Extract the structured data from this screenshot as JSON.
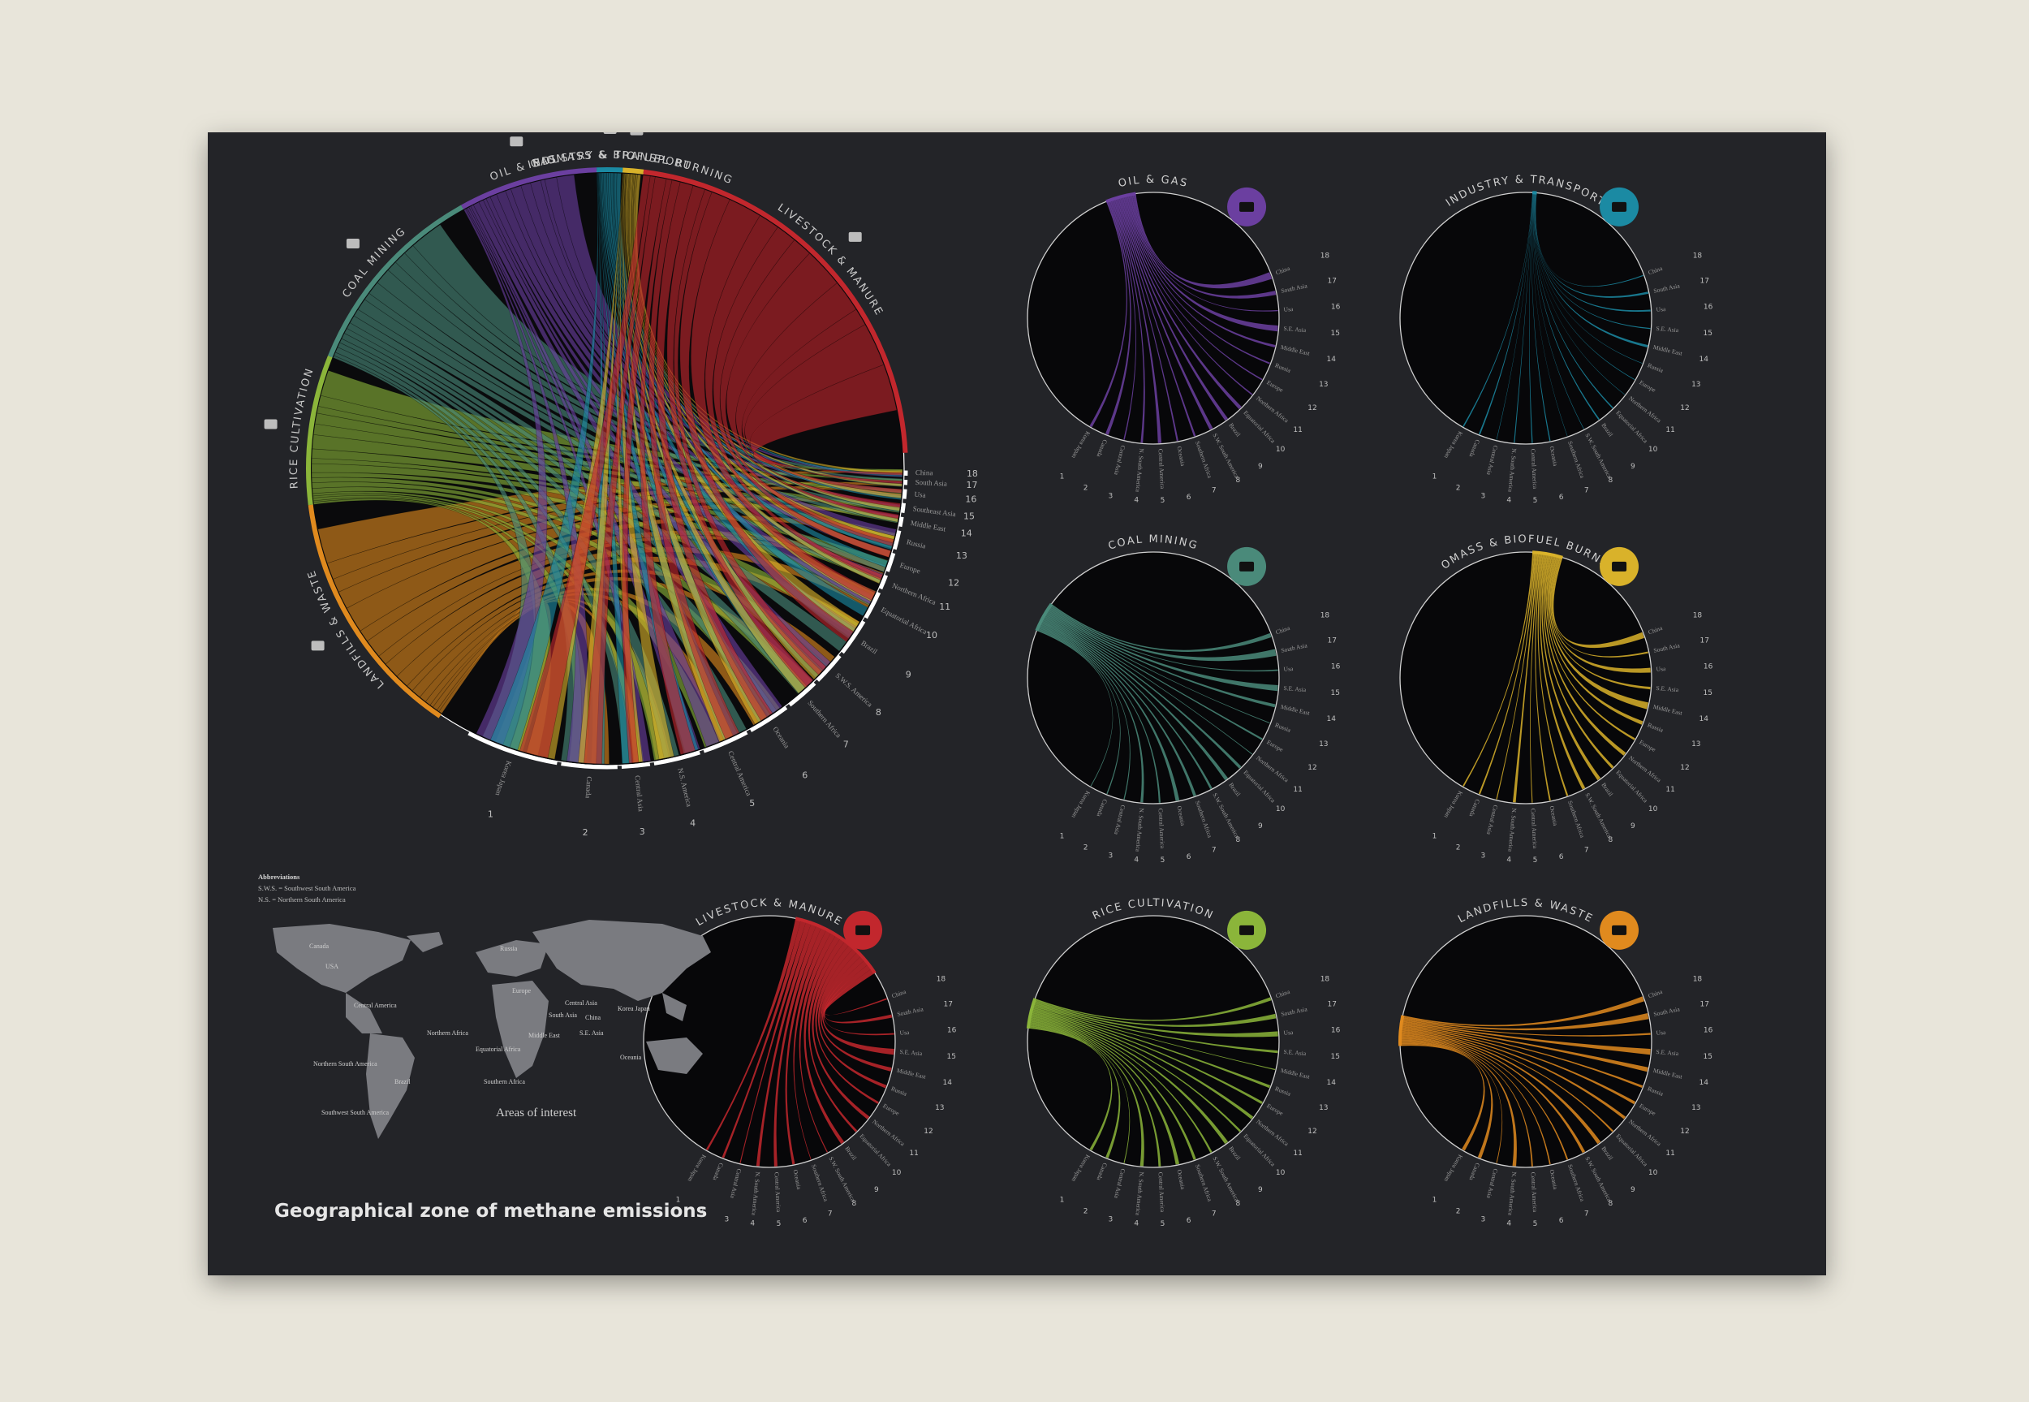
{
  "title": "Geographical zone of methane emissions",
  "abbreviations": {
    "heading": "Abbreviations",
    "items": [
      "S.W.S. = Southwest South America",
      "N.S. = Northern South America"
    ]
  },
  "colors": {
    "oil_gas": "#6b3fa0",
    "industry_transport": "#1b8aa3",
    "biomass": "#d9b22a",
    "livestock": "#c2272d",
    "coal": "#4a8a7a",
    "rice": "#8bb53a",
    "landfills": "#e08a1e"
  },
  "chart_data": [
    {
      "type": "chord",
      "sectors": [
        {
          "name": "LANDFILLS & WASTE",
          "icon": "excavator-icon",
          "color": "#e08a1e"
        },
        {
          "name": "RICE CULTIVATION",
          "icon": "rice-plant-icon",
          "color": "#8bb53a"
        },
        {
          "name": "COAL MINING",
          "icon": "mine-cart-icon",
          "color": "#4a8a7a"
        },
        {
          "name": "OIL & GAS",
          "icon": "oil-barrel-icon",
          "color": "#6b3fa0"
        },
        {
          "name": "INDUSTRY & TRANSPORT",
          "icon": "ship-icon",
          "color": "#1b8aa3"
        },
        {
          "name": "BIOMASS & BIOFUEL BURNING",
          "icon": "flame-icon",
          "color": "#d9b22a"
        },
        {
          "name": "LIVESTOCK & MANURE",
          "icon": "cow-icon",
          "color": "#c2272d"
        }
      ],
      "regions": [
        {
          "n": "1",
          "name": "Korea Japan"
        },
        {
          "n": "2",
          "name": "Canada"
        },
        {
          "n": "3",
          "name": "Central Asia"
        },
        {
          "n": "4",
          "name": "N.S. America"
        },
        {
          "n": "5",
          "name": "Central America"
        },
        {
          "n": "6",
          "name": "Oceania"
        },
        {
          "n": "7",
          "name": "Southern Africa"
        },
        {
          "n": "8",
          "name": "S.W.S. America"
        },
        {
          "n": "9",
          "name": "Brazil"
        },
        {
          "n": "10",
          "name": "Equatorial Africa"
        },
        {
          "n": "11",
          "name": "Northern Africa"
        },
        {
          "n": "12",
          "name": "Europe"
        },
        {
          "n": "13",
          "name": "Russia"
        },
        {
          "n": "14",
          "name": "Middle East"
        },
        {
          "n": "15",
          "name": "Southeast Asia"
        },
        {
          "n": "16",
          "name": "Usa"
        },
        {
          "n": "17",
          "name": "South Asia"
        },
        {
          "n": "18",
          "name": "China"
        }
      ]
    },
    {
      "type": "chord",
      "title": "OIL & GAS",
      "color": "#6b3fa0",
      "icon": "oil-barrel-icon"
    },
    {
      "type": "chord",
      "title": "INDUSTRY & TRANSPORT",
      "color": "#1b8aa3",
      "icon": "ship-icon"
    },
    {
      "type": "chord",
      "title": "COAL MINING",
      "color": "#4a8a7a",
      "icon": "mine-cart-icon"
    },
    {
      "type": "chord",
      "title": "BIOMASS & BIOFUEL BURNING",
      "color": "#d9b22a",
      "icon": "flame-icon"
    },
    {
      "type": "chord",
      "title": "LIVESTOCK & MANURE",
      "color": "#c2272d",
      "icon": "cow-icon"
    },
    {
      "type": "chord",
      "title": "RICE CULTIVATION",
      "color": "#8bb53a",
      "icon": "rice-plant-icon"
    },
    {
      "type": "chord",
      "title": "LANDFILLS & WASTE",
      "color": "#e08a1e",
      "icon": "excavator-icon"
    }
  ],
  "small_region_labels": [
    "Korea Japan",
    "Canada",
    "Central Asia",
    "N. South America",
    "Central America",
    "Oceania",
    "Southern Africa",
    "S.W. South America",
    "Brazil",
    "Equatorial Africa",
    "Northern Africa",
    "Europe",
    "Russia",
    "Middle East",
    "S.E. Asia",
    "Usa",
    "South Asia",
    "China"
  ],
  "map": {
    "caption": "Areas of interest",
    "labels": [
      "Canada",
      "USA",
      "Central America",
      "Northern South America",
      "Brazil",
      "Southwest South America",
      "Russia",
      "Europe",
      "Northern Africa",
      "Equatorial Africa",
      "Southern Africa",
      "Central Asia",
      "Middle East",
      "China",
      "South Asia",
      "S.E. Asia",
      "Korea Japan",
      "Oceania"
    ]
  }
}
